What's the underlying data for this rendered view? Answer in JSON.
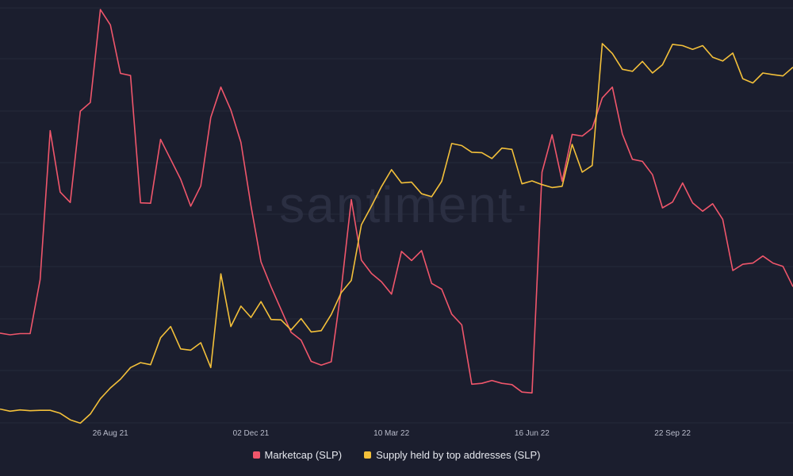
{
  "watermark": "·santiment·",
  "colors": {
    "background": "#1b1e2e",
    "grid": "#262a3b",
    "marketcap": "#f0566b",
    "supply": "#f3c03a"
  },
  "chart_data": {
    "type": "line",
    "x_ticks": [
      "26 Aug 21",
      "02 Dec 21",
      "10 Mar 22",
      "16 Jun 22",
      "22 Sep 22"
    ],
    "x_tick_index": [
      11,
      25,
      39,
      53,
      67
    ],
    "grid": true,
    "legend_position": "bottom-center",
    "ylim": [
      0,
      100
    ],
    "series": [
      {
        "name": "Marketcap (SLP)",
        "values": [
          22,
          21.6,
          21.9,
          21.9,
          34.9,
          70.8,
          56,
          53.5,
          75.5,
          77.6,
          100,
          96.3,
          84.6,
          84.1,
          53.4,
          53.3,
          68.7,
          63.9,
          59.1,
          52.6,
          57.5,
          74,
          81.3,
          75.8,
          68,
          52.7,
          39.2,
          33.2,
          27.7,
          22.2,
          20.3,
          15.2,
          14.3,
          15.1,
          32.7,
          54.2,
          39.6,
          36.4,
          34.4,
          31.4,
          41.7,
          39.5,
          41.9,
          34,
          32.6,
          26.6,
          24,
          9.7,
          9.9,
          10.6,
          9.9,
          9.6,
          7.8,
          7.6,
          60.8,
          69.8,
          58.6,
          69.9,
          69.5,
          71.4,
          78.7,
          81.3,
          70,
          63.9,
          63.4,
          60.2,
          52.2,
          53.6,
          58.2,
          53.4,
          51.4,
          53.2,
          49.4,
          37.1,
          38.6,
          38.9,
          40.6,
          38.9,
          38.1,
          33.2
        ]
      },
      {
        "name": "Supply held by top addresses (SLP)",
        "values": [
          3.7,
          3.2,
          3.5,
          3.3,
          3.4,
          3.4,
          2.7,
          1.1,
          0.3,
          2.5,
          6.2,
          8.8,
          10.9,
          13.7,
          14.9,
          14.4,
          20.9,
          23.6,
          18.2,
          17.9,
          19.7,
          13.7,
          36.3,
          23.6,
          28.5,
          25.8,
          29.6,
          25.3,
          25.2,
          22.8,
          25.5,
          22.3,
          22.6,
          26.5,
          31.8,
          34.7,
          48.1,
          52.6,
          57.3,
          61.4,
          58.2,
          58.4,
          55.6,
          54.9,
          58.6,
          67.7,
          67.2,
          65.6,
          65.5,
          64.1,
          66.6,
          66.3,
          58,
          58.7,
          57.8,
          57.1,
          57.4,
          67.5,
          60.8,
          62.4,
          91.8,
          89.4,
          85.6,
          85.1,
          87.5,
          84.7,
          86.7,
          91.6,
          91.3,
          90.4,
          91.3,
          88.5,
          87.6,
          89.5,
          83.3,
          82.3,
          84.7,
          84.3,
          84,
          86.1
        ]
      }
    ]
  }
}
